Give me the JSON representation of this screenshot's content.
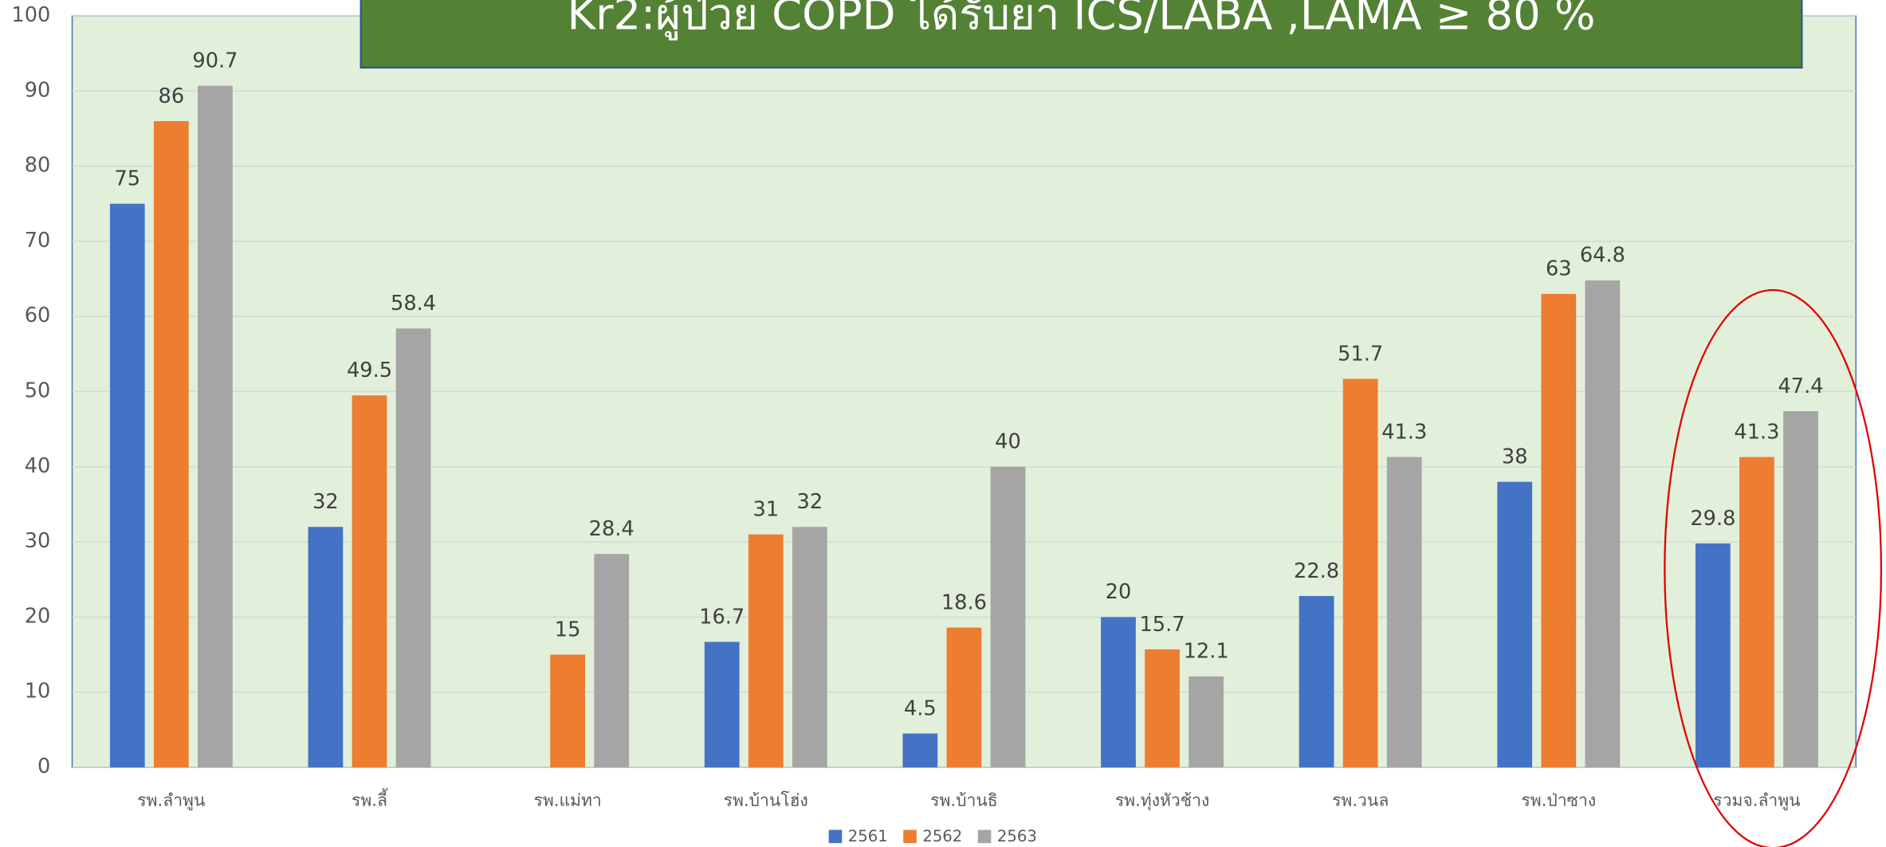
{
  "chart_data": {
    "type": "bar",
    "title": "Kr2:ผู้ป่วย  COPD ได้รับยา ICS/LABA ,LAMA ≥ 80 %",
    "categories": [
      "รพ.ลำพูน",
      "รพ.ลี้",
      "รพ.แม่ทา",
      "รพ.บ้านโฮ่ง",
      "รพ.บ้านธิ",
      "รพ.ทุ่งหัวช้าง",
      "รพ.วนล",
      "รพ.ป่าซาง",
      "รวมจ.ลำพูน"
    ],
    "series": [
      {
        "name": "2561",
        "color": "#4472c4",
        "values": [
          75,
          32,
          null,
          16.7,
          4.5,
          20,
          22.8,
          38,
          29.8
        ]
      },
      {
        "name": "2562",
        "color": "#ed7d31",
        "values": [
          86,
          49.5,
          15,
          31,
          18.6,
          15.7,
          51.7,
          63,
          41.3
        ]
      },
      {
        "name": "2563",
        "color": "#a5a5a5",
        "values": [
          90.7,
          58.4,
          28.4,
          32,
          40,
          12.1,
          41.3,
          64.8,
          47.4
        ]
      }
    ],
    "ylim": [
      0,
      100
    ],
    "yticks": [
      0,
      10,
      20,
      30,
      40,
      50,
      60,
      70,
      80,
      90,
      100
    ],
    "grid": true,
    "legend": "bottom"
  }
}
